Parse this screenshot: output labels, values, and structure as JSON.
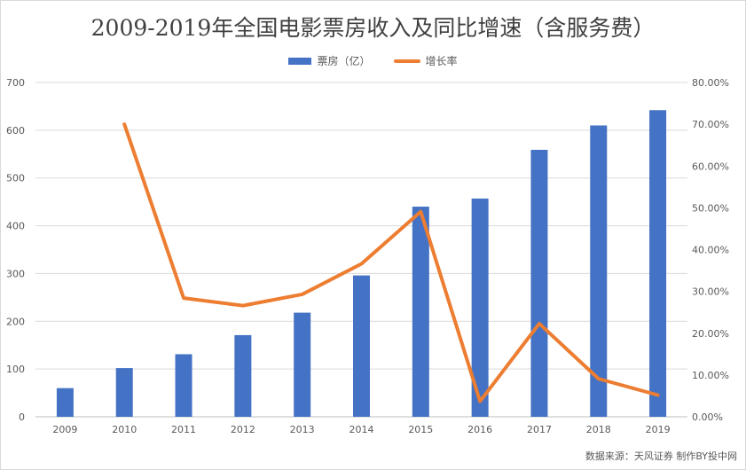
{
  "chart_data": {
    "type": "bar",
    "title": "2009-2019年全国电影票房收入及同比增速（含服务费）",
    "categories": [
      "2009",
      "2010",
      "2011",
      "2012",
      "2013",
      "2014",
      "2015",
      "2016",
      "2017",
      "2018",
      "2019"
    ],
    "series": [
      {
        "name": "票房（亿）",
        "type": "bar",
        "axis": "left",
        "color": "#4472C4",
        "values": [
          60,
          102,
          131,
          171,
          218,
          296,
          440,
          457,
          559,
          610,
          642
        ]
      },
      {
        "name": "增长率",
        "type": "line",
        "axis": "right",
        "color": "#ED7D31",
        "values": [
          null,
          70.0,
          28.4,
          26.6,
          29.3,
          36.6,
          49.1,
          3.7,
          22.3,
          9.1,
          5.2
        ]
      }
    ],
    "y_left": {
      "min": 0,
      "max": 700,
      "ticks": [
        "0",
        "100",
        "200",
        "300",
        "400",
        "500",
        "600",
        "700"
      ]
    },
    "y_right": {
      "min": 0,
      "max": 80,
      "ticks": [
        "0.00%",
        "10.00%",
        "20.00%",
        "30.00%",
        "40.00%",
        "50.00%",
        "60.00%",
        "70.00%",
        "80.00%"
      ]
    },
    "grid": true,
    "legend_position": "top-center"
  },
  "source": "数据来源：天风证券  制作BY投中网"
}
